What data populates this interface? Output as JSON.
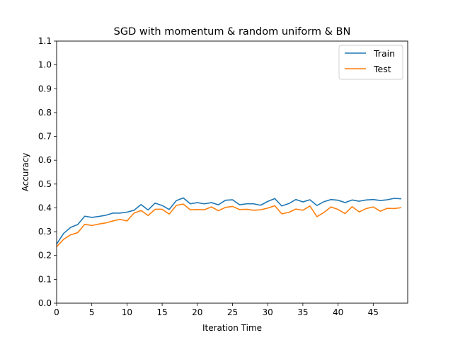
{
  "chart_data": {
    "type": "line",
    "title": "SGD with momentum & random uniform & BN",
    "xlabel": "Iteration Time",
    "ylabel": "Accuracy",
    "xlim": [
      0,
      49
    ],
    "ylim": [
      0.0,
      1.1
    ],
    "xticks": [
      0,
      5,
      10,
      15,
      20,
      25,
      30,
      35,
      40,
      45
    ],
    "yticks": [
      0.0,
      0.1,
      0.2,
      0.3,
      0.4,
      0.5,
      0.6,
      0.7,
      0.8,
      0.9,
      1.0,
      1.1
    ],
    "xtick_labels": [
      "0",
      "5",
      "10",
      "15",
      "20",
      "25",
      "30",
      "35",
      "40",
      "45"
    ],
    "ytick_labels": [
      "0.0",
      "0.1",
      "0.2",
      "0.3",
      "0.4",
      "0.5",
      "0.6",
      "0.7",
      "0.8",
      "0.9",
      "1.0",
      "1.1"
    ],
    "grid": false,
    "legend_position": "top-right",
    "x": [
      0,
      1,
      2,
      3,
      4,
      5,
      6,
      7,
      8,
      9,
      10,
      11,
      12,
      13,
      14,
      15,
      16,
      17,
      18,
      19,
      20,
      21,
      22,
      23,
      24,
      25,
      26,
      27,
      28,
      29,
      30,
      31,
      32,
      33,
      34,
      35,
      36,
      37,
      38,
      39,
      40,
      41,
      42,
      43,
      44,
      45,
      46,
      47,
      48,
      49
    ],
    "series": [
      {
        "name": "Train",
        "color": "#1f77b4",
        "values": [
          0.248,
          0.293,
          0.318,
          0.33,
          0.365,
          0.36,
          0.364,
          0.369,
          0.378,
          0.378,
          0.382,
          0.39,
          0.414,
          0.391,
          0.42,
          0.41,
          0.393,
          0.43,
          0.442,
          0.417,
          0.422,
          0.417,
          0.422,
          0.413,
          0.432,
          0.434,
          0.413,
          0.417,
          0.417,
          0.411,
          0.427,
          0.439,
          0.408,
          0.418,
          0.435,
          0.425,
          0.434,
          0.41,
          0.426,
          0.435,
          0.432,
          0.422,
          0.433,
          0.428,
          0.433,
          0.435,
          0.431,
          0.434,
          0.44,
          0.438
        ]
      },
      {
        "name": "Test",
        "color": "#ff7f0e",
        "values": [
          0.237,
          0.268,
          0.287,
          0.296,
          0.331,
          0.326,
          0.332,
          0.337,
          0.345,
          0.352,
          0.345,
          0.378,
          0.389,
          0.368,
          0.394,
          0.394,
          0.374,
          0.41,
          0.416,
          0.392,
          0.393,
          0.392,
          0.404,
          0.388,
          0.402,
          0.406,
          0.393,
          0.394,
          0.39,
          0.392,
          0.399,
          0.409,
          0.375,
          0.381,
          0.395,
          0.39,
          0.408,
          0.363,
          0.381,
          0.404,
          0.393,
          0.376,
          0.405,
          0.383,
          0.397,
          0.404,
          0.386,
          0.398,
          0.397,
          0.401
        ]
      }
    ]
  }
}
